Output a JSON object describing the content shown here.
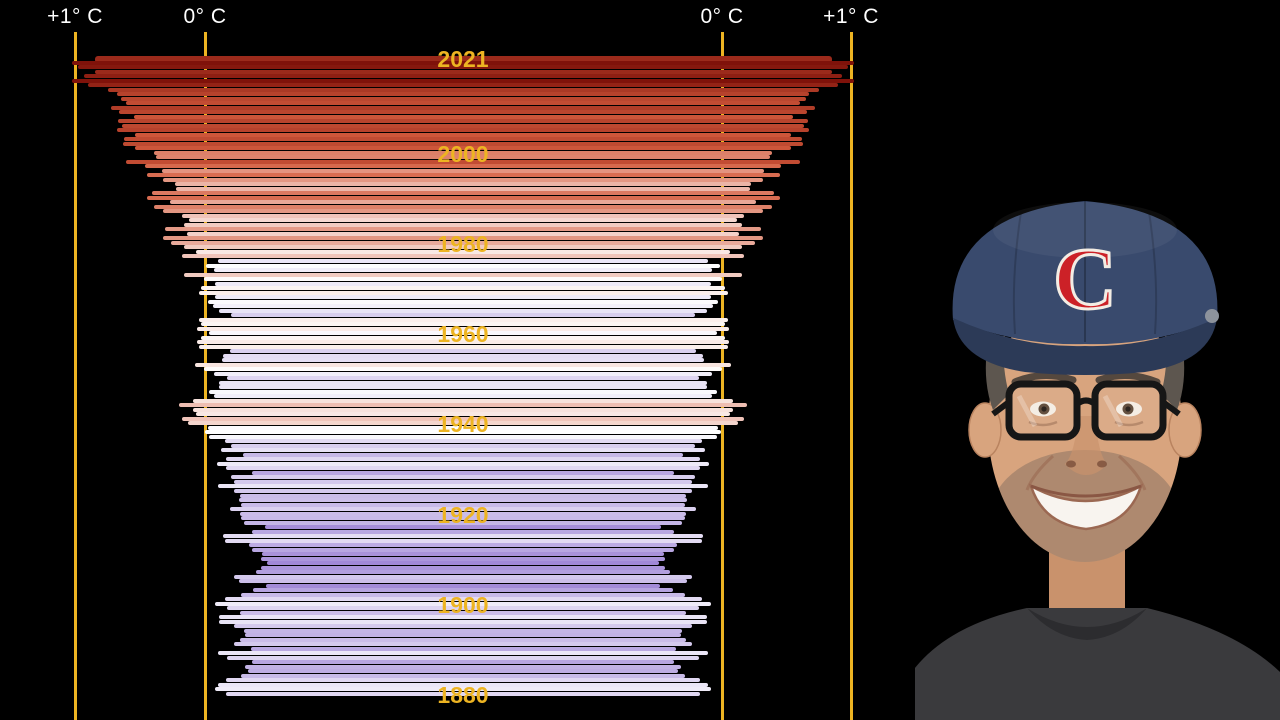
{
  "axis": {
    "gridline_color": "#edb422",
    "label_color": "#ffffff",
    "labels": [
      {
        "text": "+1° C",
        "side": "left-outer"
      },
      {
        "text": "0° C",
        "side": "left-inner"
      },
      {
        "text": "0° C",
        "side": "right-inner"
      },
      {
        "text": "+1° C",
        "side": "right-outer"
      }
    ]
  },
  "year_labels": {
    "color": "#edb422",
    "items": [
      "2021",
      "2000",
      "1980",
      "1960",
      "1940",
      "1920",
      "1900",
      "1880"
    ]
  },
  "chart_data": {
    "type": "bar",
    "orientation": "mirrored-horizontal",
    "title": "",
    "unit": "° C",
    "value_gridlines_c": [
      0,
      1
    ],
    "top_year": 2021,
    "bottom_year": 1880,
    "color_scale": {
      "zero": "#ffffff",
      "positive_mid": "#d45c3e",
      "positive_max": "#7a0e07",
      "negative_max": "#9377d1"
    },
    "years": [
      1880,
      1881,
      1882,
      1883,
      1884,
      1885,
      1886,
      1887,
      1888,
      1889,
      1890,
      1891,
      1892,
      1893,
      1894,
      1895,
      1896,
      1897,
      1898,
      1899,
      1900,
      1901,
      1902,
      1903,
      1904,
      1905,
      1906,
      1907,
      1908,
      1909,
      1910,
      1911,
      1912,
      1913,
      1914,
      1915,
      1916,
      1917,
      1918,
      1919,
      1920,
      1921,
      1922,
      1923,
      1924,
      1925,
      1926,
      1927,
      1928,
      1929,
      1930,
      1931,
      1932,
      1933,
      1934,
      1935,
      1936,
      1937,
      1938,
      1939,
      1940,
      1941,
      1942,
      1943,
      1944,
      1945,
      1946,
      1947,
      1948,
      1949,
      1950,
      1951,
      1952,
      1953,
      1954,
      1955,
      1956,
      1957,
      1958,
      1959,
      1960,
      1961,
      1962,
      1963,
      1964,
      1965,
      1966,
      1967,
      1968,
      1969,
      1970,
      1971,
      1972,
      1973,
      1974,
      1975,
      1976,
      1977,
      1978,
      1979,
      1980,
      1981,
      1982,
      1983,
      1984,
      1985,
      1986,
      1987,
      1988,
      1989,
      1990,
      1991,
      1992,
      1993,
      1994,
      1995,
      1996,
      1997,
      1998,
      1999,
      2000,
      2001,
      2002,
      2003,
      2004,
      2005,
      2006,
      2007,
      2008,
      2009,
      2010,
      2011,
      2012,
      2013,
      2014,
      2015,
      2016,
      2017,
      2018,
      2019,
      2020,
      2021
    ],
    "anomaly_c": [
      -0.16,
      -0.08,
      -0.1,
      -0.16,
      -0.28,
      -0.33,
      -0.31,
      -0.36,
      -0.17,
      -0.1,
      -0.35,
      -0.22,
      -0.27,
      -0.31,
      -0.3,
      -0.22,
      -0.11,
      -0.11,
      -0.27,
      -0.17,
      -0.08,
      -0.15,
      -0.28,
      -0.37,
      -0.47,
      -0.26,
      -0.22,
      -0.39,
      -0.43,
      -0.48,
      -0.43,
      -0.44,
      -0.36,
      -0.34,
      -0.15,
      -0.14,
      -0.36,
      -0.46,
      -0.3,
      -0.28,
      -0.27,
      -0.19,
      -0.28,
      -0.26,
      -0.27,
      -0.22,
      -0.1,
      -0.22,
      -0.2,
      -0.36,
      -0.16,
      -0.09,
      -0.16,
      -0.29,
      -0.12,
      -0.2,
      -0.15,
      -0.03,
      0.0,
      -0.02,
      0.13,
      0.18,
      0.07,
      0.09,
      0.2,
      0.09,
      -0.07,
      -0.03,
      -0.11,
      -0.11,
      -0.17,
      -0.07,
      0.01,
      0.08,
      -0.13,
      -0.14,
      -0.19,
      0.05,
      0.06,
      0.03,
      -0.03,
      0.06,
      0.03,
      0.05,
      -0.2,
      -0.11,
      -0.06,
      -0.02,
      -0.08,
      0.05,
      0.03,
      -0.08,
      0.01,
      0.16,
      -0.07,
      -0.01,
      -0.1,
      0.18,
      0.07,
      0.16,
      0.26,
      0.32,
      0.14,
      0.31,
      0.16,
      0.12,
      0.18,
      0.32,
      0.39,
      0.27,
      0.45,
      0.41,
      0.22,
      0.23,
      0.32,
      0.45,
      0.33,
      0.46,
      0.61,
      0.38,
      0.39,
      0.54,
      0.63,
      0.62,
      0.54,
      0.68,
      0.64,
      0.67,
      0.55,
      0.66,
      0.72,
      0.61,
      0.65,
      0.68,
      0.75,
      0.9,
      1.02,
      0.93,
      0.85,
      0.98,
      1.02,
      0.85
    ]
  },
  "photo": {
    "cap_logo_letter": "C",
    "cap_color": "#394a6d",
    "cap_logo_color": "#cc2127",
    "shirt_color": "#3a3a3d",
    "skin_color": "#d8a47e"
  }
}
